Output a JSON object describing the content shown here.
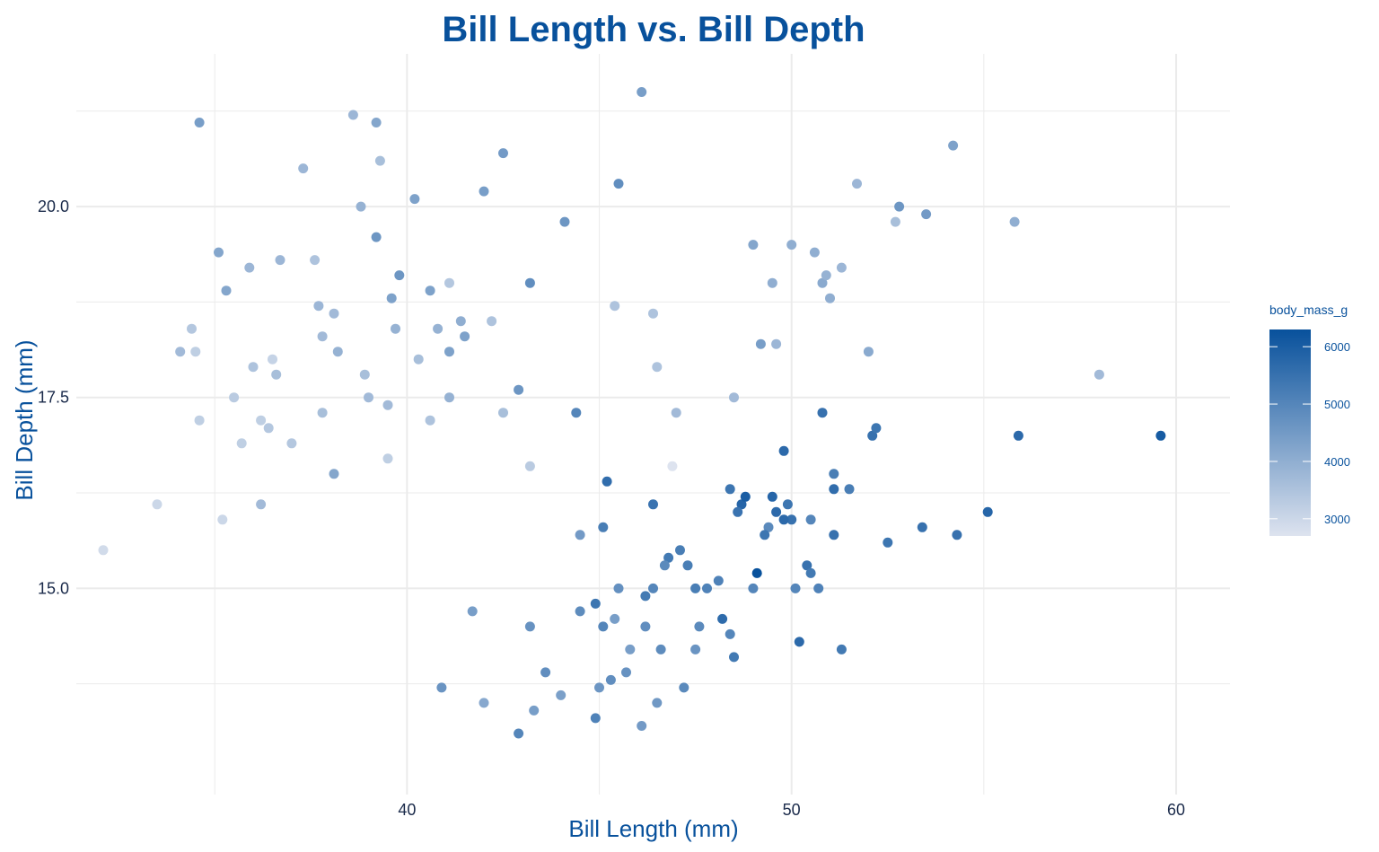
{
  "chart_data": {
    "type": "scatter",
    "title": "Bill Length vs. Bill Depth",
    "xlabel": "Bill Length (mm)",
    "ylabel": "Bill Depth (mm)",
    "xlim": [
      31.4,
      61.4
    ],
    "ylim": [
      12.3,
      22.0
    ],
    "x_ticks": [
      40,
      50,
      60
    ],
    "x_tick_labels": [
      "40",
      "50",
      "60"
    ],
    "y_ticks": [
      15.0,
      17.5,
      20.0
    ],
    "y_tick_labels": [
      "15.0",
      "17.5",
      "20.0"
    ],
    "grid": true,
    "legend": {
      "title": "body_mass_g",
      "placement": "right",
      "range": [
        2700,
        6300
      ],
      "ticks": [
        3000,
        4000,
        5000,
        6000
      ],
      "tick_labels": [
        "3000",
        "4000",
        "5000",
        "6000"
      ]
    },
    "colors": {
      "low": "#dde3ef",
      "high": "#08519c",
      "grid": "#ebebeb",
      "text": "#08519c"
    },
    "points": [
      [
        32.1,
        15.5,
        2900
      ],
      [
        33.5,
        16.1,
        3000
      ],
      [
        34.1,
        18.1,
        3700
      ],
      [
        34.4,
        18.4,
        3400
      ],
      [
        34.5,
        18.1,
        3200
      ],
      [
        34.6,
        21.1,
        4400
      ],
      [
        34.6,
        17.2,
        3200
      ],
      [
        35.1,
        19.4,
        4200
      ],
      [
        35.3,
        18.9,
        4200
      ],
      [
        35.5,
        17.5,
        3300
      ],
      [
        35.7,
        16.9,
        3200
      ],
      [
        35.9,
        19.2,
        3800
      ],
      [
        36.0,
        17.9,
        3500
      ],
      [
        36.2,
        17.2,
        3200
      ],
      [
        36.4,
        17.1,
        3400
      ],
      [
        36.6,
        17.8,
        3600
      ],
      [
        36.7,
        19.3,
        3800
      ],
      [
        37.0,
        16.9,
        3400
      ],
      [
        37.3,
        20.5,
        3800
      ],
      [
        37.6,
        19.3,
        3500
      ],
      [
        37.7,
        18.7,
        3800
      ],
      [
        37.8,
        18.3,
        3700
      ],
      [
        37.8,
        17.3,
        3600
      ],
      [
        38.1,
        18.6,
        3700
      ],
      [
        38.2,
        18.1,
        3900
      ],
      [
        38.6,
        21.2,
        3800
      ],
      [
        38.8,
        20.0,
        3900
      ],
      [
        39.0,
        17.5,
        3700
      ],
      [
        39.2,
        19.6,
        4600
      ],
      [
        39.2,
        21.1,
        4200
      ],
      [
        39.3,
        20.6,
        3600
      ],
      [
        39.5,
        17.4,
        3700
      ],
      [
        39.6,
        18.8,
        4300
      ],
      [
        39.7,
        18.4,
        3900
      ],
      [
        39.8,
        19.1,
        4600
      ],
      [
        40.2,
        20.1,
        4300
      ],
      [
        40.3,
        18.0,
        3600
      ],
      [
        40.6,
        18.9,
        4300
      ],
      [
        40.8,
        18.4,
        3900
      ],
      [
        41.1,
        19.0,
        3400
      ],
      [
        41.1,
        18.1,
        4300
      ],
      [
        41.4,
        18.5,
        4000
      ],
      [
        41.5,
        18.3,
        4300
      ],
      [
        42.0,
        20.2,
        4400
      ],
      [
        42.2,
        18.5,
        3500
      ],
      [
        42.5,
        20.7,
        4500
      ],
      [
        42.9,
        17.6,
        4600
      ],
      [
        43.2,
        19.0,
        4800
      ],
      [
        44.1,
        19.8,
        4600
      ],
      [
        36.5,
        18.0,
        3100
      ],
      [
        38.9,
        17.8,
        3600
      ],
      [
        39.5,
        16.7,
        3200
      ],
      [
        40.6,
        17.2,
        3500
      ],
      [
        41.1,
        17.5,
        3900
      ],
      [
        42.5,
        17.3,
        3600
      ],
      [
        38.1,
        16.5,
        4200
      ],
      [
        36.2,
        16.1,
        3700
      ],
      [
        35.2,
        15.9,
        3000
      ],
      [
        46.1,
        21.5,
        4400
      ],
      [
        45.5,
        20.3,
        4800
      ],
      [
        43.2,
        16.6,
        3300
      ],
      [
        46.5,
        17.9,
        3500
      ],
      [
        50.0,
        19.5,
        4000
      ],
      [
        51.3,
        19.2,
        3800
      ],
      [
        52.7,
        19.8,
        3600
      ],
      [
        45.4,
        18.7,
        3500
      ],
      [
        46.4,
        18.6,
        3500
      ],
      [
        47.0,
        17.3,
        3700
      ],
      [
        49.5,
        19.0,
        4000
      ],
      [
        50.8,
        19.0,
        4100
      ],
      [
        50.9,
        19.1,
        3900
      ],
      [
        51.7,
        20.3,
        3800
      ],
      [
        49.0,
        19.5,
        4200
      ],
      [
        48.5,
        17.5,
        3700
      ],
      [
        52.0,
        18.1,
        4100
      ],
      [
        53.5,
        19.9,
        4500
      ],
      [
        54.2,
        20.8,
        4300
      ],
      [
        55.8,
        19.8,
        4000
      ],
      [
        49.6,
        18.2,
        3800
      ],
      [
        50.6,
        19.4,
        4000
      ],
      [
        52.8,
        20.0,
        4600
      ],
      [
        46.9,
        16.6,
        2700
      ],
      [
        58.0,
        17.8,
        3700
      ],
      [
        49.2,
        18.2,
        4400
      ],
      [
        51.0,
        18.8,
        4000
      ],
      [
        44.4,
        17.3,
        5000
      ],
      [
        45.2,
        16.4,
        5600
      ],
      [
        48.7,
        16.1,
        5800
      ],
      [
        48.4,
        16.3,
        5400
      ],
      [
        49.6,
        16.0,
        5700
      ],
      [
        50.0,
        15.9,
        5500
      ],
      [
        49.9,
        16.1,
        5400
      ],
      [
        50.5,
        15.9,
        5000
      ],
      [
        51.1,
        16.5,
        5200
      ],
      [
        50.8,
        17.3,
        5500
      ],
      [
        52.1,
        17.0,
        5500
      ],
      [
        52.2,
        17.1,
        5400
      ],
      [
        51.1,
        16.3,
        5600
      ],
      [
        49.4,
        15.8,
        4900
      ],
      [
        49.8,
        16.8,
        5700
      ],
      [
        55.1,
        16.0,
        5800
      ],
      [
        55.9,
        17.0,
        5700
      ],
      [
        59.6,
        17.0,
        6050
      ],
      [
        53.4,
        15.8,
        5500
      ],
      [
        54.3,
        15.7,
        5500
      ],
      [
        52.5,
        15.6,
        5400
      ],
      [
        51.5,
        16.3,
        5200
      ],
      [
        50.2,
        14.3,
        5700
      ],
      [
        49.1,
        15.2,
        6300
      ],
      [
        48.2,
        14.6,
        5650
      ],
      [
        47.2,
        13.7,
        4900
      ],
      [
        46.1,
        13.2,
        4500
      ],
      [
        45.1,
        14.5,
        5000
      ],
      [
        44.5,
        15.7,
        4500
      ],
      [
        43.2,
        14.5,
        4700
      ],
      [
        42.9,
        13.1,
        5000
      ],
      [
        41.7,
        14.7,
        4400
      ],
      [
        40.9,
        13.7,
        4650
      ],
      [
        42.0,
        13.5,
        4150
      ],
      [
        43.3,
        13.4,
        4400
      ],
      [
        44.0,
        13.6,
        4350
      ],
      [
        45.0,
        13.7,
        4600
      ],
      [
        46.5,
        13.5,
        4550
      ],
      [
        47.8,
        15.0,
        5100
      ],
      [
        48.1,
        15.1,
        5100
      ],
      [
        49.0,
        15.0,
        5000
      ],
      [
        50.7,
        15.0,
        5100
      ],
      [
        51.3,
        14.2,
        5300
      ],
      [
        48.5,
        14.1,
        5300
      ],
      [
        47.5,
        15.0,
        5200
      ],
      [
        46.2,
        14.9,
        5300
      ],
      [
        45.3,
        13.8,
        4800
      ],
      [
        45.8,
        14.2,
        4400
      ],
      [
        46.8,
        15.4,
        5300
      ],
      [
        47.3,
        15.3,
        5200
      ],
      [
        48.8,
        16.2,
        6000
      ],
      [
        50.4,
        15.3,
        5500
      ],
      [
        50.1,
        15.0,
        5000
      ],
      [
        46.7,
        15.3,
        4900
      ],
      [
        45.7,
        13.9,
        4700
      ],
      [
        44.5,
        14.7,
        4850
      ],
      [
        43.6,
        13.9,
        4800
      ],
      [
        44.9,
        13.3,
        5100
      ],
      [
        46.6,
        14.2,
        4850
      ],
      [
        47.5,
        14.2,
        4650
      ],
      [
        46.4,
        15.0,
        5000
      ],
      [
        45.5,
        15.0,
        4750
      ],
      [
        47.1,
        15.5,
        5200
      ],
      [
        46.4,
        16.1,
        5450
      ],
      [
        48.4,
        14.4,
        5000
      ],
      [
        49.3,
        15.7,
        5400
      ],
      [
        50.5,
        15.2,
        5300
      ],
      [
        51.1,
        15.7,
        5500
      ],
      [
        49.5,
        16.2,
        5800
      ],
      [
        47.6,
        14.5,
        4900
      ],
      [
        45.1,
        15.8,
        5200
      ],
      [
        44.9,
        14.8,
        5400
      ],
      [
        45.4,
        14.6,
        4400
      ],
      [
        46.2,
        14.5,
        4800
      ],
      [
        48.6,
        16.0,
        5450
      ],
      [
        49.8,
        15.9,
        5700
      ]
    ]
  }
}
